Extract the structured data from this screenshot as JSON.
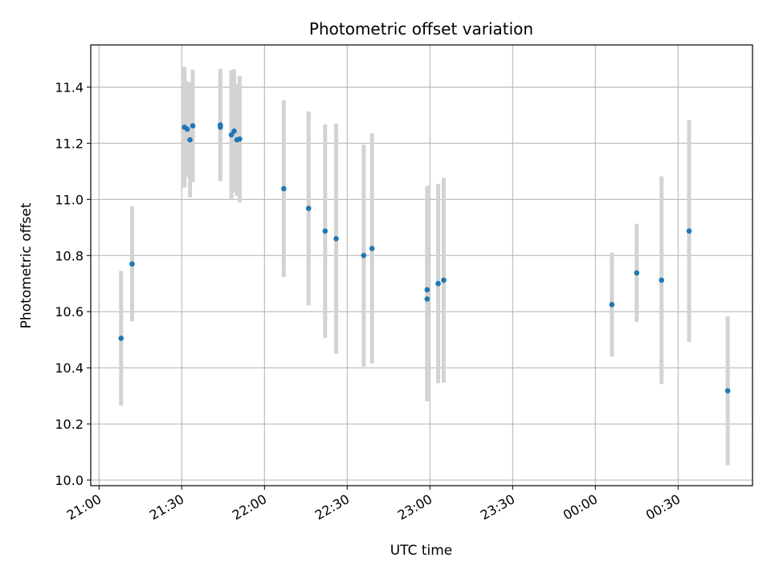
{
  "chart_data": {
    "type": "scatter",
    "title": "Photometric offset variation",
    "xlabel": "UTC time",
    "ylabel": "Photometric offset",
    "x_axis": {
      "scale": "time",
      "range": [
        "20:57",
        "00:57"
      ],
      "day_rollover_at": "00:00"
    },
    "ylim": [
      9.98,
      11.55
    ],
    "grid": true,
    "x_ticks": [
      "21:00",
      "21:30",
      "22:00",
      "22:30",
      "23:00",
      "23:30",
      "00:00",
      "00:30"
    ],
    "y_ticks": [
      "10.0",
      "10.2",
      "10.4",
      "10.6",
      "10.8",
      "11.0",
      "11.2",
      "11.4"
    ],
    "marker_color": "#1f77b4",
    "errorbar_color": "#d3d3d3",
    "series": [
      {
        "points": [
          {
            "x": "21:08",
            "y": 10.505,
            "err": 0.24
          },
          {
            "x": "21:12",
            "y": 10.77,
            "err": 0.205
          },
          {
            "x": "21:31",
            "y": 11.257,
            "err": 0.215
          },
          {
            "x": "21:32",
            "y": 11.25,
            "err": 0.17
          },
          {
            "x": "21:33",
            "y": 11.212,
            "err": 0.205
          },
          {
            "x": "21:34",
            "y": 11.262,
            "err": 0.2
          },
          {
            "x": "21:44",
            "y": 11.257,
            "err": 0.185
          },
          {
            "x": "21:44",
            "y": 11.265,
            "err": 0.2
          },
          {
            "x": "21:48",
            "y": 11.23,
            "err": 0.23
          },
          {
            "x": "21:49",
            "y": 11.243,
            "err": 0.22
          },
          {
            "x": "21:50",
            "y": 11.212,
            "err": 0.2
          },
          {
            "x": "21:51",
            "y": 11.215,
            "err": 0.225
          },
          {
            "x": "22:07",
            "y": 11.038,
            "err": 0.315
          },
          {
            "x": "22:16",
            "y": 10.968,
            "err": 0.345
          },
          {
            "x": "22:22",
            "y": 10.887,
            "err": 0.38
          },
          {
            "x": "22:26",
            "y": 10.86,
            "err": 0.41
          },
          {
            "x": "22:36",
            "y": 10.8,
            "err": 0.395
          },
          {
            "x": "22:39",
            "y": 10.825,
            "err": 0.41
          },
          {
            "x": "22:59",
            "y": 10.678,
            "err": 0.37
          },
          {
            "x": "22:59",
            "y": 10.645,
            "err": 0.365
          },
          {
            "x": "23:03",
            "y": 10.7,
            "err": 0.355
          },
          {
            "x": "23:05",
            "y": 10.712,
            "err": 0.365
          },
          {
            "x": "00:06",
            "y": 10.625,
            "err": 0.185
          },
          {
            "x": "00:15",
            "y": 10.738,
            "err": 0.175
          },
          {
            "x": "00:24",
            "y": 10.712,
            "err": 0.37
          },
          {
            "x": "00:34",
            "y": 10.887,
            "err": 0.395
          },
          {
            "x": "00:48",
            "y": 10.318,
            "err": 0.265
          }
        ]
      }
    ]
  }
}
